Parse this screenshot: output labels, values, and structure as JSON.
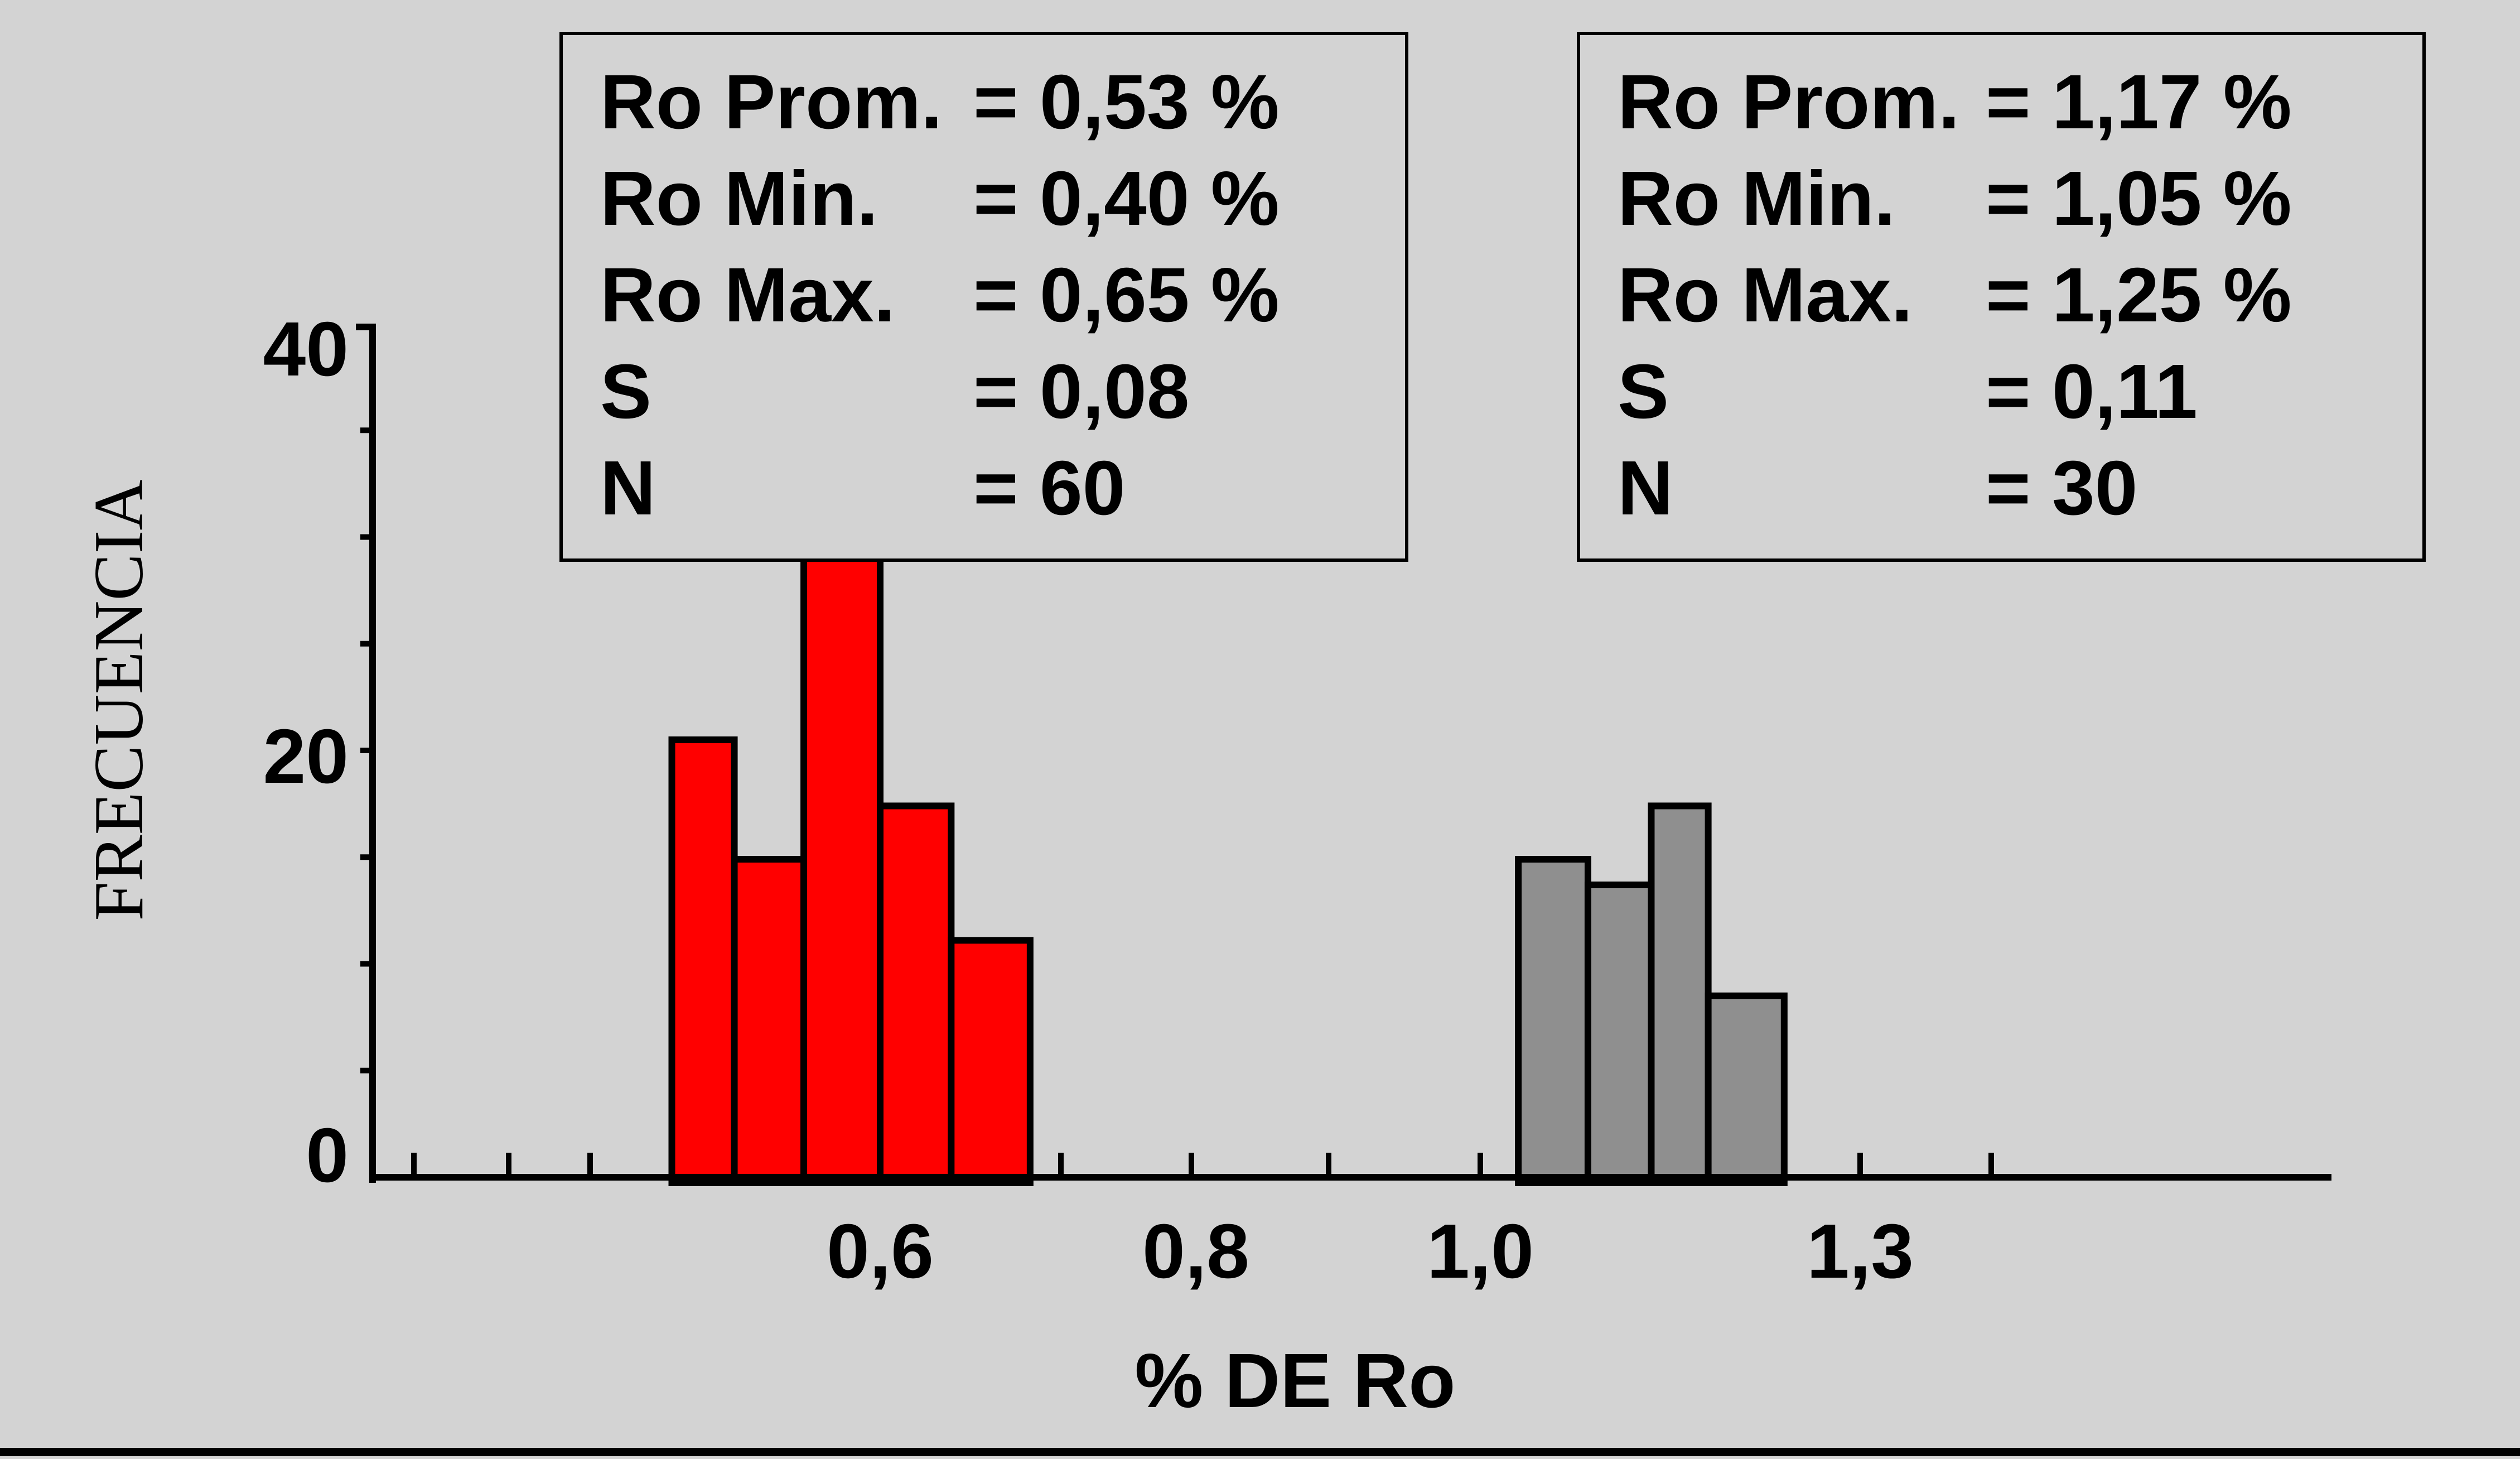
{
  "chart_data": {
    "type": "bar",
    "xlabel": "% DE Ro",
    "ylabel": "FRECUENCIA",
    "ylim": [
      0,
      40
    ],
    "y_ticks": [
      "0",
      "20",
      "40"
    ],
    "x_ticks": [
      {
        "label": "0,6",
        "value": 0.6
      },
      {
        "label": "0,8",
        "value": 0.8
      },
      {
        "label": "1,0",
        "value": 1.0
      },
      {
        "label": "1,3",
        "value": 1.3
      }
    ],
    "grid": false,
    "legend": "none",
    "series": [
      {
        "color": "#ff0000",
        "bins": [
          {
            "x0": 0.45,
            "x1": 0.495,
            "value": 20.5
          },
          {
            "x0": 0.495,
            "x1": 0.545,
            "value": 14.9
          },
          {
            "x0": 0.545,
            "x1": 0.6,
            "value": 29.2
          },
          {
            "x0": 0.6,
            "x1": 0.645,
            "value": 17.4
          },
          {
            "x0": 0.645,
            "x1": 0.695,
            "value": 11.1
          }
        ]
      },
      {
        "color": "#8f8f8f",
        "bins": [
          {
            "x0": 1.03,
            "x1": 1.085,
            "value": 14.9
          },
          {
            "x0": 1.085,
            "x1": 1.135,
            "value": 13.7
          },
          {
            "x0": 1.135,
            "x1": 1.18,
            "value": 17.4
          },
          {
            "x0": 1.18,
            "x1": 1.24,
            "value": 8.5
          }
        ]
      }
    ],
    "stats_boxes": [
      {
        "position": "top-left",
        "lines": [
          {
            "label": "Ro Prom.",
            "value": "= 0,53 %"
          },
          {
            "label": "Ro Min.",
            "value": "= 0,40 %"
          },
          {
            "label": "Ro Max.",
            "value": "= 0,65 %"
          },
          {
            "label": "S",
            "value": "= 0,08"
          },
          {
            "label": "N",
            "value": "= 60"
          }
        ]
      },
      {
        "position": "top-right",
        "lines": [
          {
            "label": "Ro Prom.",
            "value": "= 1,17 %"
          },
          {
            "label": "Ro Min.",
            "value": "= 1,05 %"
          },
          {
            "label": "Ro Max.",
            "value": "= 1,25 %"
          },
          {
            "label": "S",
            "value": "= 0,11"
          },
          {
            "label": "N",
            "value": "= 30"
          }
        ]
      }
    ]
  }
}
